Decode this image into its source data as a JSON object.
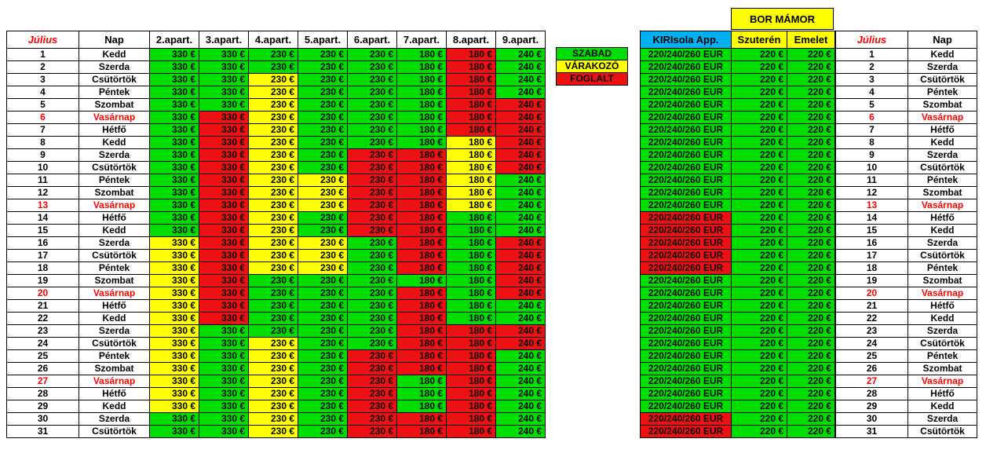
{
  "main_header": {
    "month": "Július",
    "day": "Nap",
    "apartments": [
      "2.apart.",
      "3.apart.",
      "4.apart.",
      "5.apart.",
      "6.apart.",
      "7.apart.",
      "8.apart.",
      "9.apart."
    ]
  },
  "legend": {
    "free": "SZABAD",
    "waiting": "VÁRAKOZÓ",
    "booked": "FOGLALT"
  },
  "colors": {
    "free": "#00dd00",
    "waiting": "#ffff00",
    "booked": "#ee1111",
    "blue_header": "#00b0f0",
    "sunday_text": "#ff0000"
  },
  "bor_mamor": {
    "title": "BOR  MÁMOR",
    "kiri_header": "KIRIsola App.",
    "suteren": "Szuterén",
    "emelet": "Emelet"
  },
  "right_header": {
    "month": "Július",
    "day": "Nap"
  },
  "prices": [
    "330 €",
    "330 €",
    "230 €",
    "230 €",
    "230 €",
    "180 €",
    "180 €",
    "240 €"
  ],
  "kiri_price": "220/240/260 EUR",
  "bor_price": "220 €",
  "days": [
    {
      "n": "1",
      "d": "Kedd",
      "s": "GGGGGGFG",
      "k": "G"
    },
    {
      "n": "2",
      "d": "Szerda",
      "s": "GGGGGGFG",
      "k": "G"
    },
    {
      "n": "3",
      "d": "Csütörtök",
      "s": "GGYGGGFG",
      "k": "G"
    },
    {
      "n": "4",
      "d": "Péntek",
      "s": "GGYGGGFG",
      "k": "G"
    },
    {
      "n": "5",
      "d": "Szombat",
      "s": "GGYGGGFF",
      "k": "G"
    },
    {
      "n": "6",
      "d": "Vasárnap",
      "s": "GFYGGGFF",
      "k": "G",
      "sun": true
    },
    {
      "n": "7",
      "d": "Hétfő",
      "s": "GFYGGGFF",
      "k": "G"
    },
    {
      "n": "8",
      "d": "Kedd",
      "s": "GFYGGGYF",
      "k": "G"
    },
    {
      "n": "9",
      "d": "Szerda",
      "s": "GFYGFFYF",
      "k": "G"
    },
    {
      "n": "10",
      "d": "Csütörtök",
      "s": "GFYGFFYF",
      "k": "G"
    },
    {
      "n": "11",
      "d": "Péntek",
      "s": "GFYYFFYG",
      "k": "G"
    },
    {
      "n": "12",
      "d": "Szombat",
      "s": "GFYYFFYG",
      "k": "G"
    },
    {
      "n": "13",
      "d": "Vasárnap",
      "s": "GFYYFFYG",
      "k": "G",
      "sun": true
    },
    {
      "n": "14",
      "d": "Hétfő",
      "s": "GFYGFFGG",
      "k": "F"
    },
    {
      "n": "15",
      "d": "Kedd",
      "s": "GFYGFFGG",
      "k": "F"
    },
    {
      "n": "16",
      "d": "Szerda",
      "s": "YFYYGFGF",
      "k": "F"
    },
    {
      "n": "17",
      "d": "Csütörtök",
      "s": "YFYYGFGF",
      "k": "F"
    },
    {
      "n": "18",
      "d": "Péntek",
      "s": "YFYYGFGF",
      "k": "F"
    },
    {
      "n": "19",
      "d": "Szombat",
      "s": "YFGGGGGF",
      "k": "G"
    },
    {
      "n": "20",
      "d": "Vasárnap",
      "s": "YFGGGFGF",
      "k": "G",
      "sun": true
    },
    {
      "n": "21",
      "d": "Hétfő",
      "s": "YFGGGFGG",
      "k": "G"
    },
    {
      "n": "22",
      "d": "Kedd",
      "s": "YFGGGFGG",
      "k": "G"
    },
    {
      "n": "23",
      "d": "Szerda",
      "s": "YGGGGFFF",
      "k": "G"
    },
    {
      "n": "24",
      "d": "Csütörtök",
      "s": "YGYGGFFF",
      "k": "G"
    },
    {
      "n": "25",
      "d": "Péntek",
      "s": "YGYGFFFG",
      "k": "G"
    },
    {
      "n": "26",
      "d": "Szombat",
      "s": "YGYGFFFG",
      "k": "G"
    },
    {
      "n": "27",
      "d": "Vasárnap",
      "s": "YGYGFGFG",
      "k": "G",
      "sun": true
    },
    {
      "n": "28",
      "d": "Hétfő",
      "s": "YGYGFGFG",
      "k": "G"
    },
    {
      "n": "29",
      "d": "Kedd",
      "s": "YGYGFGFG",
      "k": "G"
    },
    {
      "n": "30",
      "d": "Szerda",
      "s": "GGYGFFFG",
      "k": "F"
    },
    {
      "n": "31",
      "d": "Csütörtök",
      "s": "GGYGFFFG",
      "k": "F"
    }
  ]
}
